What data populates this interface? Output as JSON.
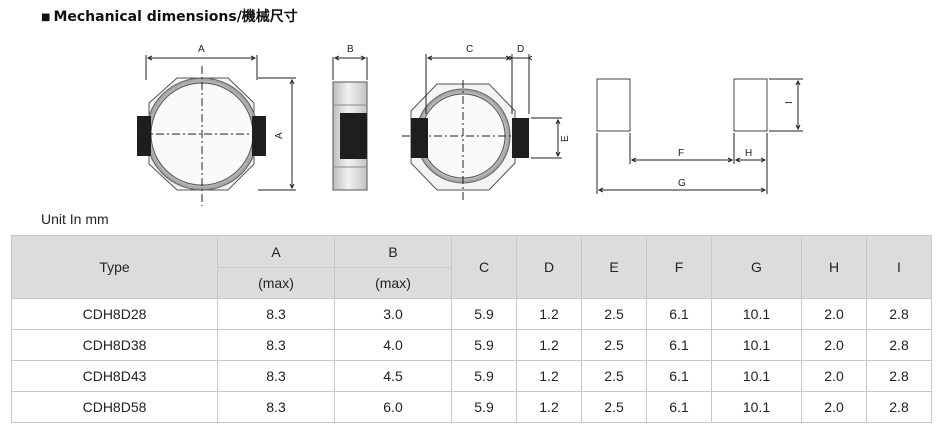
{
  "heading": {
    "bullet": "■",
    "text": "Mechanical dimensions/機械尺寸"
  },
  "drawing": {
    "labels": {
      "A_top": "A",
      "A_side": "A",
      "B": "B",
      "C": "C",
      "D": "D",
      "E": "E",
      "F": "F",
      "G": "G",
      "H": "H",
      "I": "I"
    }
  },
  "unit_note": "Unit In mm",
  "table": {
    "type_header": "Type",
    "col_A": "A",
    "col_A_sub": "(max)",
    "col_B": "B",
    "col_B_sub": "(max)",
    "cols": [
      "C",
      "D",
      "E",
      "F",
      "G",
      "H",
      "I"
    ],
    "rows": [
      [
        "CDH8D28",
        "8.3",
        "3.0",
        "5.9",
        "1.2",
        "2.5",
        "6.1",
        "10.1",
        "2.0",
        "2.8"
      ],
      [
        "CDH8D38",
        "8.3",
        "4.0",
        "5.9",
        "1.2",
        "2.5",
        "6.1",
        "10.1",
        "2.0",
        "2.8"
      ],
      [
        "CDH8D43",
        "8.3",
        "4.5",
        "5.9",
        "1.2",
        "2.5",
        "6.1",
        "10.1",
        "2.0",
        "2.8"
      ],
      [
        "CDH8D58",
        "8.3",
        "6.0",
        "5.9",
        "1.2",
        "2.5",
        "6.1",
        "10.1",
        "2.0",
        "2.8"
      ]
    ]
  }
}
